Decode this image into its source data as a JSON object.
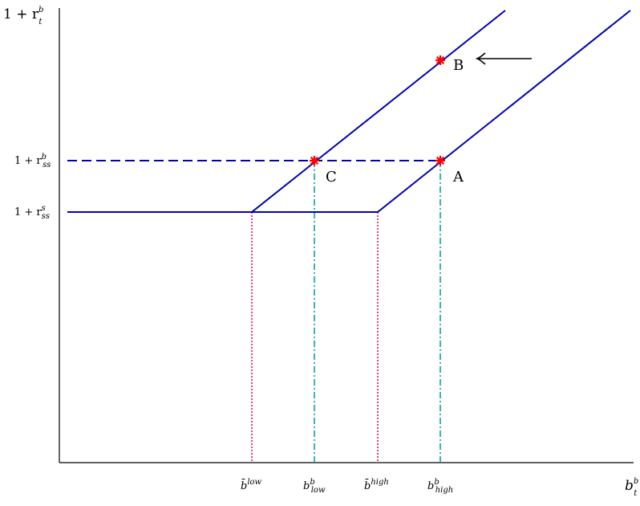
{
  "axes": {
    "y_label": {
      "main": "1 + r",
      "sup": "b",
      "sub": "t"
    },
    "x_label": {
      "main": "b",
      "sup": "b",
      "sub": "t"
    }
  },
  "y_ticks": [
    {
      "id": "rb",
      "main": "1 + r",
      "sup": "b",
      "sub": "ss"
    },
    {
      "id": "rs",
      "main": "1 + r",
      "sup": "s",
      "sub": "ss"
    }
  ],
  "x_ticks": [
    {
      "id": "blow_bar",
      "main": "b̄",
      "sup": "low",
      "sub": ""
    },
    {
      "id": "blow",
      "main": "b",
      "sup": "b",
      "sub": "low"
    },
    {
      "id": "bhigh_bar",
      "main": "b̄",
      "sup": "high",
      "sub": ""
    },
    {
      "id": "bhigh",
      "main": "b",
      "sup": "b",
      "sub": "high"
    }
  ],
  "points": [
    {
      "id": "A",
      "label": "A"
    },
    {
      "id": "B",
      "label": "B"
    },
    {
      "id": "C",
      "label": "C"
    }
  ],
  "colors": {
    "curve": "#0000b4",
    "dashed_rate": "#0000b4",
    "teal_guide": "#009999",
    "red_guide": "#e0004f",
    "marker": "#ff0000",
    "arrow": "#000000",
    "axis": "#000000"
  }
}
